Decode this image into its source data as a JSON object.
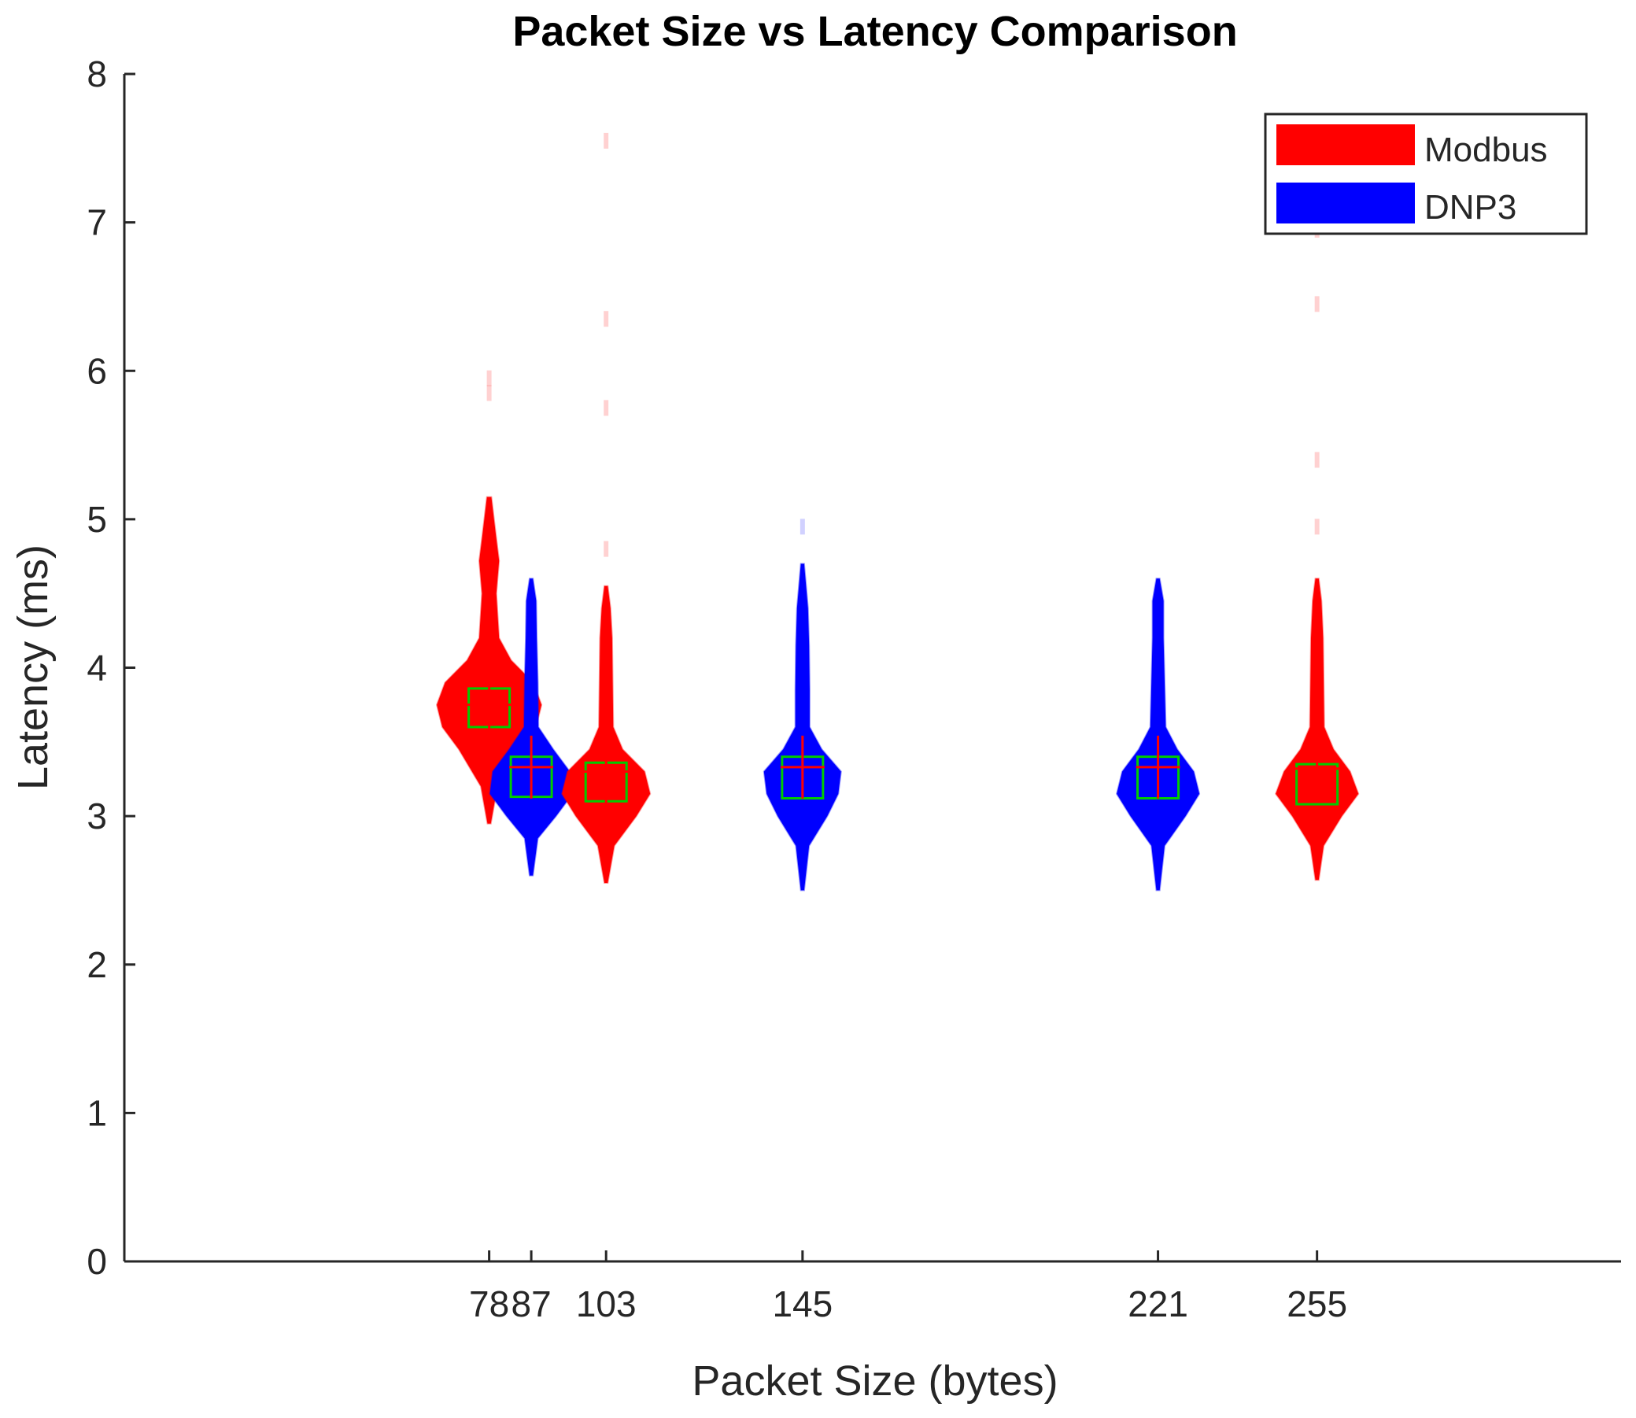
{
  "chart_data": {
    "type": "violin",
    "title": "Packet Size vs Latency Comparison",
    "xlabel": "Packet Size (bytes)",
    "ylabel": "Latency (ms)",
    "xlim": [
      0,
      320
    ],
    "ylim": [
      0,
      8
    ],
    "x_ticks": [
      {
        "value": 78,
        "label": "78"
      },
      {
        "value": 87,
        "label": "87"
      },
      {
        "value": 103,
        "label": "103"
      },
      {
        "value": 145,
        "label": "145"
      },
      {
        "value": 221,
        "label": "221"
      },
      {
        "value": 255,
        "label": "255"
      }
    ],
    "y_ticks": [
      {
        "value": 0,
        "label": "0"
      },
      {
        "value": 1,
        "label": "1"
      },
      {
        "value": 2,
        "label": "2"
      },
      {
        "value": 3,
        "label": "3"
      },
      {
        "value": 4,
        "label": "4"
      },
      {
        "value": 5,
        "label": "5"
      },
      {
        "value": 6,
        "label": "6"
      },
      {
        "value": 7,
        "label": "7"
      },
      {
        "value": 8,
        "label": "8"
      }
    ],
    "legend": {
      "position": "top-right",
      "entries": [
        {
          "name": "Modbus",
          "color": "#ff0000"
        },
        {
          "name": "DNP3",
          "color": "#0000ff"
        }
      ]
    },
    "colors": {
      "box": "#00cc00",
      "mean_marker": "#ff0000"
    },
    "grid": false,
    "violins": [
      {
        "series": "Modbus",
        "x": 78,
        "median": 3.72,
        "q1": 3.6,
        "q3": 3.86,
        "mean": 3.75,
        "min": 2.95,
        "max": 5.15,
        "profile": [
          [
            2.95,
            0.3
          ],
          [
            3.2,
            1.5
          ],
          [
            3.45,
            5.5
          ],
          [
            3.6,
            8.5
          ],
          [
            3.75,
            9.5
          ],
          [
            3.9,
            8
          ],
          [
            4.05,
            4
          ],
          [
            4.2,
            1.8
          ],
          [
            4.5,
            1.3
          ],
          [
            4.72,
            1.8
          ],
          [
            4.9,
            1.2
          ],
          [
            5.15,
            0.4
          ]
        ]
      },
      {
        "series": "DNP3",
        "x": 87,
        "median": 3.27,
        "q1": 3.13,
        "q3": 3.4,
        "mean": 3.33,
        "min": 2.6,
        "max": 4.6,
        "profile": [
          [
            2.6,
            0.3
          ],
          [
            2.85,
            1.2
          ],
          [
            3.0,
            4.5
          ],
          [
            3.15,
            7.5
          ],
          [
            3.3,
            7
          ],
          [
            3.45,
            4
          ],
          [
            3.6,
            1.3
          ],
          [
            3.9,
            1.2
          ],
          [
            4.2,
            1
          ],
          [
            4.45,
            0.9
          ],
          [
            4.6,
            0.3
          ]
        ]
      },
      {
        "series": "Modbus",
        "x": 103,
        "median": 3.24,
        "q1": 3.1,
        "q3": 3.36,
        "mean": 3.3,
        "min": 2.55,
        "max": 4.55,
        "profile": [
          [
            2.55,
            0.3
          ],
          [
            2.8,
            1.5
          ],
          [
            3.0,
            5.5
          ],
          [
            3.15,
            8
          ],
          [
            3.3,
            7
          ],
          [
            3.45,
            3
          ],
          [
            3.6,
            1.3
          ],
          [
            3.9,
            1.2
          ],
          [
            4.2,
            1.1
          ],
          [
            4.4,
            0.8
          ],
          [
            4.55,
            0.3
          ]
        ]
      },
      {
        "series": "DNP3",
        "x": 145,
        "median": 3.25,
        "q1": 3.12,
        "q3": 3.4,
        "mean": 3.33,
        "min": 2.5,
        "max": 4.7,
        "profile": [
          [
            2.5,
            0.3
          ],
          [
            2.8,
            1.2
          ],
          [
            3.0,
            4.5
          ],
          [
            3.15,
            6.5
          ],
          [
            3.3,
            7
          ],
          [
            3.45,
            3.5
          ],
          [
            3.6,
            1.3
          ],
          [
            3.85,
            1.3
          ],
          [
            4.15,
            1.2
          ],
          [
            4.4,
            1
          ],
          [
            4.7,
            0.3
          ]
        ]
      },
      {
        "series": "DNP3",
        "x": 221,
        "median": 3.25,
        "q1": 3.12,
        "q3": 3.4,
        "mean": 3.33,
        "min": 2.5,
        "max": 4.6,
        "profile": [
          [
            2.5,
            0.3
          ],
          [
            2.8,
            1.2
          ],
          [
            3.0,
            5
          ],
          [
            3.15,
            7.5
          ],
          [
            3.3,
            6.5
          ],
          [
            3.45,
            3.5
          ],
          [
            3.6,
            1.4
          ],
          [
            3.9,
            1.2
          ],
          [
            4.2,
            1
          ],
          [
            4.45,
            1
          ],
          [
            4.6,
            0.3
          ]
        ]
      },
      {
        "series": "Modbus",
        "x": 255,
        "median": 3.22,
        "q1": 3.08,
        "q3": 3.35,
        "mean": 3.32,
        "min": 2.57,
        "max": 4.6,
        "profile": [
          [
            2.57,
            0.3
          ],
          [
            2.8,
            1.2
          ],
          [
            3.0,
            4.5
          ],
          [
            3.15,
            7.5
          ],
          [
            3.3,
            6
          ],
          [
            3.45,
            3
          ],
          [
            3.6,
            1.3
          ],
          [
            3.9,
            1.2
          ],
          [
            4.2,
            1.1
          ],
          [
            4.45,
            0.8
          ],
          [
            4.6,
            0.3
          ]
        ]
      }
    ],
    "outliers": [
      {
        "series": "Modbus",
        "x": 78,
        "y": [
          5.85,
          5.95
        ]
      },
      {
        "series": "DNP3",
        "x": 87,
        "y": []
      },
      {
        "series": "Modbus",
        "x": 103,
        "y": [
          4.8,
          5.75,
          6.35,
          7.55
        ]
      },
      {
        "series": "DNP3",
        "x": 145,
        "y": [
          4.95
        ]
      },
      {
        "series": "DNP3",
        "x": 221,
        "y": []
      },
      {
        "series": "Modbus",
        "x": 255,
        "y": [
          4.95,
          5.4,
          6.45,
          6.95
        ]
      }
    ]
  }
}
